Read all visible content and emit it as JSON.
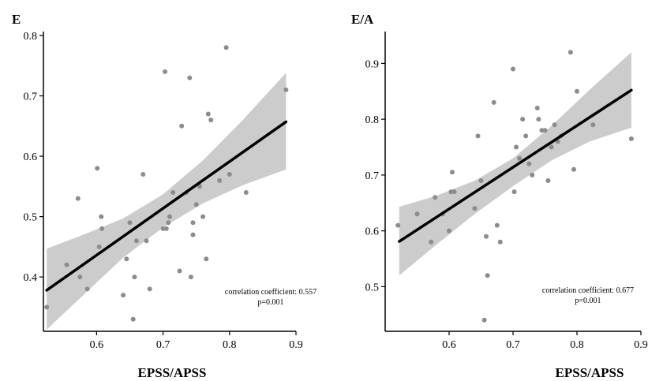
{
  "chart_data": [
    {
      "type": "scatter",
      "title": "E",
      "xlabel": "EPSS/APSS",
      "ylabel": "",
      "xlim": [
        0.52,
        0.9
      ],
      "ylim": [
        0.31,
        0.8
      ],
      "xticks": [
        "0.6",
        "0.7",
        "0.8",
        "0.9"
      ],
      "yticks": [
        "0.4",
        "0.5",
        "0.6",
        "0.7",
        "0.8"
      ],
      "grid": false,
      "annotation": [
        "correlation coefficient: 0.557",
        "p=0.001"
      ],
      "fit_line": {
        "x": [
          0.525,
          0.885
        ],
        "y": [
          0.378,
          0.657
        ]
      },
      "confidence_band": {
        "x": [
          0.525,
          0.58,
          0.64,
          0.7,
          0.76,
          0.82,
          0.885
        ],
        "upper": [
          0.447,
          0.47,
          0.497,
          0.537,
          0.593,
          0.66,
          0.738
        ],
        "lower": [
          0.313,
          0.37,
          0.432,
          0.482,
          0.522,
          0.552,
          0.578
        ]
      },
      "x": [
        0.525,
        0.555,
        0.572,
        0.575,
        0.586,
        0.601,
        0.604,
        0.607,
        0.608,
        0.64,
        0.645,
        0.65,
        0.655,
        0.657,
        0.66,
        0.67,
        0.675,
        0.68,
        0.7,
        0.703,
        0.705,
        0.708,
        0.71,
        0.715,
        0.725,
        0.728,
        0.735,
        0.74,
        0.742,
        0.745,
        0.745,
        0.75,
        0.755,
        0.76,
        0.765,
        0.768,
        0.772,
        0.785,
        0.795,
        0.8,
        0.825,
        0.885
      ],
      "y": [
        0.35,
        0.42,
        0.53,
        0.4,
        0.38,
        0.58,
        0.45,
        0.5,
        0.48,
        0.37,
        0.43,
        0.49,
        0.33,
        0.4,
        0.46,
        0.57,
        0.46,
        0.38,
        0.48,
        0.74,
        0.48,
        0.49,
        0.5,
        0.54,
        0.41,
        0.65,
        0.54,
        0.73,
        0.4,
        0.47,
        0.49,
        0.52,
        0.55,
        0.5,
        0.43,
        0.67,
        0.66,
        0.56,
        0.78,
        0.57,
        0.54,
        0.71
      ]
    },
    {
      "type": "scatter",
      "title": "E/A",
      "xlabel": "EPSS/APSS",
      "ylabel": "",
      "xlim": [
        0.5,
        0.9
      ],
      "ylim": [
        0.42,
        0.95
      ],
      "xticks": [
        "0.6",
        "0.7",
        "0.8",
        "0.9"
      ],
      "yticks": [
        "0.5",
        "0.6",
        "0.7",
        "0.8",
        "0.9"
      ],
      "grid": false,
      "annotation": [
        "correlation coefficient: 0.677",
        "p=0.001"
      ],
      "fit_line": {
        "x": [
          0.522,
          0.885
        ],
        "y": [
          0.581,
          0.852
        ]
      },
      "confidence_band": {
        "x": [
          0.522,
          0.58,
          0.64,
          0.7,
          0.76,
          0.82,
          0.885
        ],
        "upper": [
          0.643,
          0.663,
          0.69,
          0.73,
          0.788,
          0.853,
          0.92
        ],
        "lower": [
          0.52,
          0.575,
          0.63,
          0.68,
          0.726,
          0.76,
          0.785
        ]
      },
      "x": [
        0.52,
        0.55,
        0.572,
        0.578,
        0.59,
        0.6,
        0.603,
        0.605,
        0.608,
        0.64,
        0.645,
        0.65,
        0.655,
        0.658,
        0.66,
        0.67,
        0.675,
        0.68,
        0.7,
        0.702,
        0.705,
        0.71,
        0.715,
        0.72,
        0.725,
        0.73,
        0.738,
        0.74,
        0.745,
        0.75,
        0.755,
        0.76,
        0.765,
        0.77,
        0.775,
        0.79,
        0.795,
        0.8,
        0.825,
        0.885
      ],
      "y": [
        0.61,
        0.63,
        0.58,
        0.66,
        0.63,
        0.6,
        0.67,
        0.705,
        0.67,
        0.64,
        0.77,
        0.69,
        0.44,
        0.59,
        0.52,
        0.83,
        0.61,
        0.58,
        0.89,
        0.67,
        0.75,
        0.73,
        0.8,
        0.77,
        0.72,
        0.7,
        0.82,
        0.8,
        0.78,
        0.78,
        0.69,
        0.75,
        0.79,
        0.76,
        0.77,
        0.92,
        0.71,
        0.85,
        0.79,
        0.765
      ]
    }
  ]
}
